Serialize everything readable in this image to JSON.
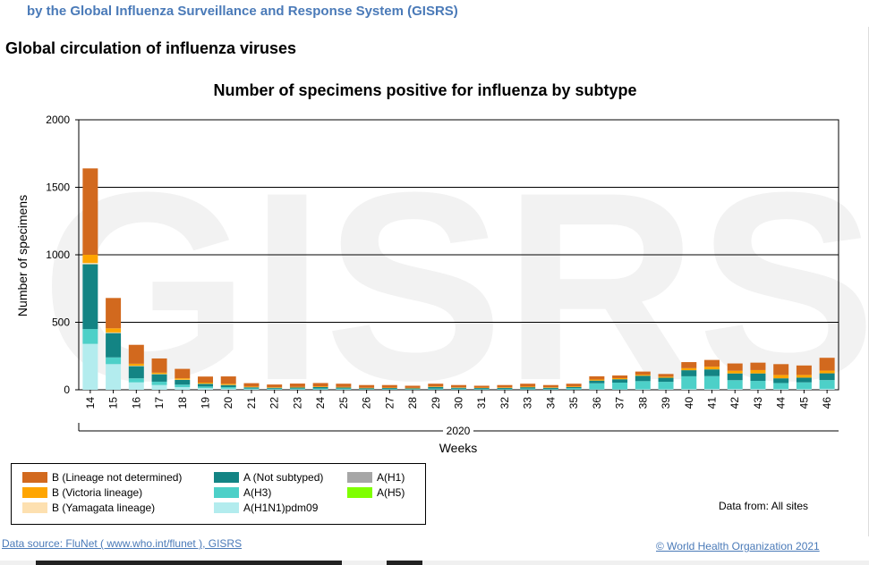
{
  "header": {
    "subtitle": "by the Global Influenza Surveillance and Response System (GISRS)",
    "section_title": "Global circulation of influenza viruses"
  },
  "chart_data": {
    "type": "bar",
    "stacked": true,
    "title": "Number of specimens positive for influenza by subtype",
    "ylabel": "Number of specimens",
    "xlabel": "Weeks",
    "year_label": "2020",
    "watermark": "GISRS",
    "ylim": [
      0,
      2000
    ],
    "yticks": [
      0,
      500,
      1000,
      1500,
      2000
    ],
    "grid": true,
    "categories": [
      "14",
      "15",
      "16",
      "17",
      "18",
      "19",
      "20",
      "21",
      "22",
      "23",
      "24",
      "25",
      "26",
      "27",
      "28",
      "29",
      "30",
      "31",
      "32",
      "33",
      "34",
      "35",
      "36",
      "37",
      "38",
      "39",
      "40",
      "41",
      "42",
      "43",
      "44",
      "45",
      "46"
    ],
    "series": [
      {
        "name": "A(H1N1)pdm09",
        "color": "#b3ecee",
        "values": [
          340,
          190,
          55,
          35,
          20,
          12,
          8,
          4,
          3,
          3,
          3,
          3,
          2,
          2,
          2,
          2,
          2,
          2,
          2,
          2,
          2,
          2,
          3,
          3,
          4,
          4,
          5,
          6,
          6,
          6,
          5,
          5,
          7
        ]
      },
      {
        "name": "A(H3)",
        "color": "#4dd0c8",
        "values": [
          110,
          50,
          30,
          25,
          18,
          12,
          12,
          6,
          5,
          6,
          7,
          6,
          4,
          5,
          4,
          7,
          6,
          5,
          5,
          7,
          5,
          10,
          45,
          50,
          60,
          55,
          95,
          95,
          65,
          60,
          45,
          50,
          65
        ]
      },
      {
        "name": "A(Not subtyped)",
        "color": "#138484",
        "values": [
          480,
          180,
          90,
          55,
          35,
          20,
          15,
          8,
          7,
          8,
          10,
          8,
          6,
          6,
          5,
          12,
          7,
          6,
          7,
          10,
          8,
          8,
          20,
          25,
          40,
          30,
          45,
          50,
          50,
          55,
          35,
          35,
          50
        ]
      },
      {
        "name": "A(H1)",
        "color": "#a6a6a6",
        "values": [
          0,
          0,
          0,
          0,
          0,
          0,
          0,
          0,
          0,
          0,
          0,
          0,
          0,
          0,
          0,
          0,
          0,
          0,
          0,
          0,
          0,
          0,
          0,
          0,
          0,
          0,
          0,
          0,
          0,
          0,
          0,
          0,
          0
        ]
      },
      {
        "name": "A(H5)",
        "color": "#7fff00",
        "values": [
          0,
          0,
          0,
          0,
          0,
          0,
          0,
          0,
          0,
          0,
          0,
          0,
          0,
          0,
          0,
          0,
          0,
          0,
          0,
          0,
          0,
          0,
          0,
          0,
          0,
          0,
          0,
          0,
          0,
          0,
          0,
          0,
          0
        ]
      },
      {
        "name": "B (Yamagata lineage)",
        "color": "#fde0b0",
        "values": [
          10,
          5,
          3,
          2,
          2,
          1,
          1,
          1,
          0,
          0,
          0,
          0,
          0,
          0,
          0,
          0,
          0,
          0,
          0,
          0,
          0,
          0,
          0,
          0,
          0,
          0,
          0,
          0,
          0,
          0,
          0,
          0,
          0
        ]
      },
      {
        "name": "B (Victoria lineage)",
        "color": "#ffa500",
        "values": [
          60,
          30,
          15,
          10,
          10,
          8,
          8,
          5,
          4,
          4,
          5,
          4,
          3,
          3,
          3,
          4,
          3,
          3,
          4,
          5,
          4,
          5,
          8,
          8,
          8,
          8,
          15,
          20,
          20,
          25,
          25,
          20,
          20
        ]
      },
      {
        "name": "B (Lineage not determined)",
        "color": "#d2691e",
        "values": [
          640,
          225,
          140,
          105,
          70,
          45,
          55,
          25,
          20,
          25,
          25,
          24,
          20,
          19,
          16,
          20,
          17,
          14,
          17,
          21,
          16,
          20,
          24,
          20,
          23,
          20,
          45,
          50,
          54,
          55,
          80,
          70,
          95
        ]
      }
    ]
  },
  "legend": {
    "items": [
      {
        "label": "B (Lineage not determined)",
        "color": "#d2691e"
      },
      {
        "label": "B (Victoria lineage)",
        "color": "#ffa500"
      },
      {
        "label": "B (Yamagata lineage)",
        "color": "#fde0b0"
      },
      {
        "label": "A (Not subtyped)",
        "color": "#138484"
      },
      {
        "label": "A(H3)",
        "color": "#4dd0c8"
      },
      {
        "label": "A(H1N1)pdm09",
        "color": "#b3ecee"
      },
      {
        "label": "A(H1)",
        "color": "#a6a6a6"
      },
      {
        "label": "A(H5)",
        "color": "#7fff00"
      }
    ]
  },
  "footer": {
    "data_from": "Data from: All sites",
    "source": "Data source: FluNet ( www.who.int/flunet ), GISRS",
    "copyright": "© World Health Organization 2021"
  }
}
